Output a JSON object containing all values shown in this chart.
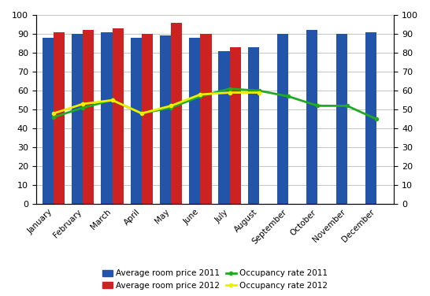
{
  "months": [
    "January",
    "February",
    "March",
    "April",
    "May",
    "June",
    "July",
    "August",
    "September",
    "October",
    "November",
    "December"
  ],
  "avg_price_2011": [
    88,
    90,
    91,
    88,
    89,
    88,
    81,
    83,
    90,
    92,
    90,
    91
  ],
  "avg_price_2012": [
    91,
    92,
    93,
    90,
    96,
    90,
    83,
    null,
    null,
    null,
    null,
    null
  ],
  "occupancy_2011": [
    46,
    51,
    55,
    48,
    51,
    57,
    61,
    60,
    57,
    52,
    52,
    45
  ],
  "occupancy_2012": [
    48,
    53,
    55,
    48,
    52,
    58,
    59,
    59,
    null,
    null,
    null,
    null
  ],
  "bar_color_2011": "#2255AA",
  "bar_color_2012": "#CC2222",
  "line_color_2011": "#22AA22",
  "line_color_2012": "#EEEE00",
  "ylim": [
    0,
    100
  ],
  "yticks": [
    0,
    10,
    20,
    30,
    40,
    50,
    60,
    70,
    80,
    90,
    100
  ],
  "bar_width": 0.38,
  "legend_labels": [
    "Average room price 2011",
    "Average room price 2012",
    "Occupancy rate 2011",
    "Occupancy rate 2012"
  ],
  "figwidth": 5.46,
  "figheight": 3.76,
  "dpi": 100
}
